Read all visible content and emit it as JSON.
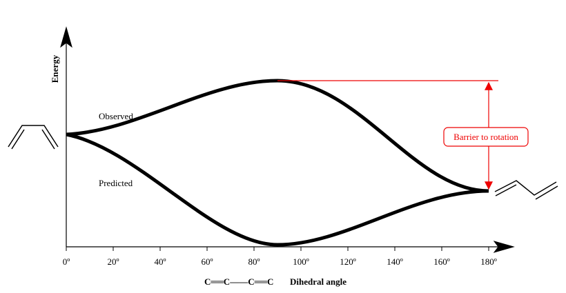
{
  "axes": {
    "y_label": "Energy",
    "x_label": "Dihedral angle",
    "x_formula": "C══C——C══C",
    "x_ticks": [
      "0º",
      "20º",
      "40º",
      "60º",
      "80º",
      "100º",
      "120º",
      "140º",
      "160º",
      "180º"
    ]
  },
  "curves": {
    "observed": "Observed",
    "predicted": "Predicted"
  },
  "annotation": "Barrier to rotation"
}
